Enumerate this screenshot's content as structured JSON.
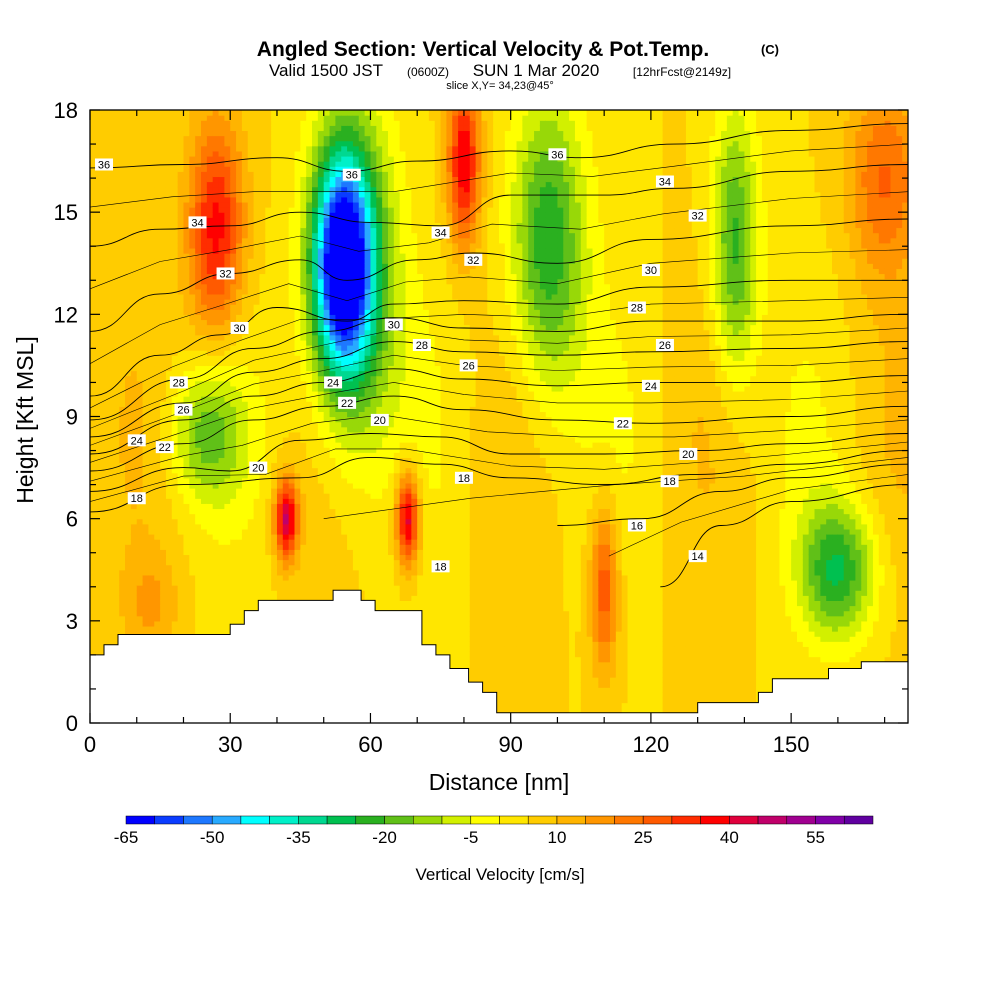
{
  "chart_data": {
    "type": "heatmap",
    "title": "Angled Section: Vertical Velocity & Pot.Temp.",
    "title_mark": "(C)",
    "subtitle_main": "Valid 1500 JST",
    "subtitle_z": "(0600Z)",
    "subtitle_date": "SUN 1 Mar 2020",
    "subtitle_fcst": "[12hrFcst@2149z]",
    "slice_label": "slice X,Y= 34,23@45°",
    "xlabel": "Distance [nm]",
    "ylabel": "Height [Kft MSL]",
    "xlim": [
      0,
      175
    ],
    "ylim": [
      0,
      18
    ],
    "x_ticks": [
      0,
      30,
      60,
      90,
      120,
      150
    ],
    "y_ticks": [
      0,
      3,
      6,
      9,
      12,
      15,
      18
    ],
    "colorbar": {
      "label": "Vertical Velocity [cm/s]",
      "range": [
        -65,
        65
      ],
      "step": 5,
      "tick_values": [
        -65,
        -50,
        -35,
        -20,
        -5,
        10,
        25,
        40,
        55
      ],
      "tick_labels": [
        "-65",
        "-50",
        "-35",
        "-20",
        "-5",
        "10",
        "25",
        "40",
        "55"
      ],
      "colors": [
        "#0000ff",
        "#0a3cff",
        "#1e78ff",
        "#28aaff",
        "#00ffff",
        "#00f0c8",
        "#00d890",
        "#00c050",
        "#2ab020",
        "#60c018",
        "#98d808",
        "#d2f000",
        "#ffff00",
        "#ffe600",
        "#ffcc00",
        "#ffb400",
        "#ff9600",
        "#ff7800",
        "#ff5a00",
        "#ff2d00",
        "#ff0000",
        "#e0003c",
        "#c0006a",
        "#a00090",
        "#8000a8",
        "#6000a0"
      ]
    },
    "velocity_cells": [
      {
        "x": [
          0,
          175
        ],
        "y": [
          0,
          18
        ],
        "w": 5
      },
      {
        "x": [
          27,
          6
        ],
        "y": [
          14.5,
          3.2
        ],
        "w": 38
      },
      {
        "x": [
          42,
          2.5
        ],
        "y": [
          6,
          1.2
        ],
        "w": 45
      },
      {
        "x": [
          68,
          2.5
        ],
        "y": [
          6,
          1.4
        ],
        "w": 45
      },
      {
        "x": [
          80,
          3.5
        ],
        "y": [
          16.5,
          2.5
        ],
        "w": 40
      },
      {
        "x": [
          54,
          6
        ],
        "y": [
          13.5,
          3
        ],
        "w": -55
      },
      {
        "x": [
          56,
          9
        ],
        "y": [
          13,
          5
        ],
        "w": -30
      },
      {
        "x": [
          98,
          8
        ],
        "y": [
          14,
          4.5
        ],
        "w": -25
      },
      {
        "x": [
          138,
          5
        ],
        "y": [
          14,
          4
        ],
        "w": -22
      },
      {
        "x": [
          160,
          8
        ],
        "y": [
          4.5,
          2
        ],
        "w": -25
      },
      {
        "x": [
          110,
          3
        ],
        "y": [
          4,
          2.5
        ],
        "w": 30
      },
      {
        "x": [
          170,
          8
        ],
        "y": [
          16,
          3
        ],
        "w": 25
      },
      {
        "x": [
          25,
          8
        ],
        "y": [
          8.5,
          2
        ],
        "w": -15
      },
      {
        "x": [
          13,
          6
        ],
        "y": [
          3.5,
          1.5
        ],
        "w": 15
      }
    ],
    "isentropes": [
      {
        "label": "14",
        "points": [
          [
            122,
            4
          ],
          [
            135,
            5.8
          ],
          [
            150,
            6.5
          ],
          [
            175,
            7
          ]
        ]
      },
      {
        "label": "16",
        "points": [
          [
            100,
            5.8
          ],
          [
            118,
            6
          ],
          [
            135,
            6.8
          ],
          [
            150,
            7.2
          ],
          [
            175,
            7.6
          ]
        ]
      },
      {
        "label": "18",
        "points": [
          [
            0,
            6.2
          ],
          [
            20,
            7
          ],
          [
            45,
            7.2
          ],
          [
            60,
            7.8
          ],
          [
            75,
            7.6
          ],
          [
            90,
            7.2
          ],
          [
            110,
            7
          ],
          [
            130,
            7.3
          ],
          [
            150,
            7.6
          ],
          [
            175,
            8
          ]
        ]
      },
      {
        "label": "20",
        "points": [
          [
            0,
            6.8
          ],
          [
            20,
            7.5
          ],
          [
            30,
            7.4
          ],
          [
            45,
            8.3
          ],
          [
            60,
            8.5
          ],
          [
            75,
            8.4
          ],
          [
            90,
            7.9
          ],
          [
            110,
            7.9
          ],
          [
            130,
            8
          ],
          [
            150,
            8.2
          ],
          [
            175,
            8.5
          ]
        ]
      },
      {
        "label": "22",
        "points": [
          [
            0,
            7.4
          ],
          [
            20,
            8.2
          ],
          [
            35,
            8.9
          ],
          [
            50,
            9.3
          ],
          [
            65,
            9.6
          ],
          [
            80,
            9.2
          ],
          [
            100,
            8.9
          ],
          [
            120,
            8.8
          ],
          [
            150,
            9
          ],
          [
            175,
            9.3
          ]
        ]
      },
      {
        "label": "24",
        "points": [
          [
            0,
            7.9
          ],
          [
            20,
            8.9
          ],
          [
            35,
            9.6
          ],
          [
            50,
            10
          ],
          [
            65,
            10.4
          ],
          [
            80,
            10.1
          ],
          [
            100,
            9.9
          ],
          [
            120,
            10
          ],
          [
            150,
            10
          ],
          [
            175,
            10.2
          ]
        ]
      },
      {
        "label": "26",
        "points": [
          [
            0,
            8.4
          ],
          [
            20,
            9.4
          ],
          [
            35,
            10.3
          ],
          [
            50,
            10.7
          ],
          [
            65,
            11.2
          ],
          [
            80,
            10.9
          ],
          [
            100,
            10.8
          ],
          [
            120,
            10.9
          ],
          [
            150,
            11
          ],
          [
            175,
            11.2
          ]
        ]
      },
      {
        "label": "28",
        "points": [
          [
            0,
            8.9
          ],
          [
            20,
            10.1
          ],
          [
            35,
            11
          ],
          [
            50,
            11.5
          ],
          [
            65,
            11.9
          ],
          [
            80,
            11.6
          ],
          [
            100,
            11.5
          ],
          [
            120,
            11.8
          ],
          [
            150,
            11.8
          ],
          [
            175,
            12
          ]
        ]
      },
      {
        "label": "30",
        "points": [
          [
            0,
            9.6
          ],
          [
            15,
            10.8
          ],
          [
            28,
            11.4
          ],
          [
            40,
            12.2
          ],
          [
            55,
            11.8
          ],
          [
            65,
            12.3
          ],
          [
            80,
            12.4
          ],
          [
            100,
            12.3
          ],
          [
            120,
            12.8
          ],
          [
            150,
            13
          ],
          [
            175,
            13
          ]
        ]
      },
      {
        "label": "32",
        "points": [
          [
            0,
            11.5
          ],
          [
            15,
            12.6
          ],
          [
            30,
            13.2
          ],
          [
            45,
            13.6
          ],
          [
            55,
            13
          ],
          [
            70,
            13.6
          ],
          [
            82,
            13.8
          ],
          [
            100,
            13.5
          ],
          [
            120,
            14.2
          ],
          [
            150,
            14.6
          ],
          [
            175,
            14.8
          ]
        ]
      },
      {
        "label": "34",
        "points": [
          [
            0,
            14
          ],
          [
            15,
            14.5
          ],
          [
            30,
            14.6
          ],
          [
            45,
            15
          ],
          [
            60,
            14.7
          ],
          [
            75,
            14.6
          ],
          [
            90,
            15.5
          ],
          [
            110,
            15.5
          ],
          [
            125,
            15.7
          ],
          [
            150,
            16.2
          ],
          [
            175,
            16.4
          ]
        ]
      },
      {
        "label": "36",
        "points": [
          [
            0,
            16.3
          ],
          [
            20,
            16.4
          ],
          [
            40,
            16.6
          ],
          [
            55,
            16.2
          ],
          [
            70,
            16.5
          ],
          [
            90,
            16.8
          ],
          [
            105,
            16.6
          ],
          [
            125,
            17
          ],
          [
            150,
            17.4
          ],
          [
            175,
            17.6
          ]
        ]
      }
    ],
    "isentrope_labels": [
      {
        "text": "14",
        "x": 130,
        "y": 4.9
      },
      {
        "text": "16",
        "x": 117,
        "y": 5.8
      },
      {
        "text": "18",
        "x": 10,
        "y": 6.6
      },
      {
        "text": "18",
        "x": 124,
        "y": 7.1
      },
      {
        "text": "18",
        "x": 80,
        "y": 7.2
      },
      {
        "text": "18",
        "x": 75,
        "y": 4.6
      },
      {
        "text": "20",
        "x": 36,
        "y": 7.5
      },
      {
        "text": "20",
        "x": 62,
        "y": 8.9
      },
      {
        "text": "20",
        "x": 128,
        "y": 7.9
      },
      {
        "text": "22",
        "x": 16,
        "y": 8.1
      },
      {
        "text": "22",
        "x": 55,
        "y": 9.4
      },
      {
        "text": "22",
        "x": 114,
        "y": 8.8
      },
      {
        "text": "24",
        "x": 10,
        "y": 8.3
      },
      {
        "text": "24",
        "x": 52,
        "y": 10
      },
      {
        "text": "24",
        "x": 120,
        "y": 9.9
      },
      {
        "text": "26",
        "x": 20,
        "y": 9.2
      },
      {
        "text": "26",
        "x": 81,
        "y": 10.5
      },
      {
        "text": "26",
        "x": 123,
        "y": 11.1
      },
      {
        "text": "28",
        "x": 19,
        "y": 10
      },
      {
        "text": "28",
        "x": 71,
        "y": 11.1
      },
      {
        "text": "28",
        "x": 117,
        "y": 12.2
      },
      {
        "text": "30",
        "x": 32,
        "y": 11.6
      },
      {
        "text": "30",
        "x": 65,
        "y": 11.7
      },
      {
        "text": "30",
        "x": 120,
        "y": 13.3
      },
      {
        "text": "32",
        "x": 29,
        "y": 13.2
      },
      {
        "text": "32",
        "x": 82,
        "y": 13.6
      },
      {
        "text": "32",
        "x": 130,
        "y": 14.9
      },
      {
        "text": "34",
        "x": 23,
        "y": 14.7
      },
      {
        "text": "34",
        "x": 75,
        "y": 14.4
      },
      {
        "text": "34",
        "x": 123,
        "y": 15.9
      },
      {
        "text": "36",
        "x": 3,
        "y": 16.4
      },
      {
        "text": "36",
        "x": 56,
        "y": 16.1
      },
      {
        "text": "36",
        "x": 100,
        "y": 16.7
      }
    ],
    "terrain": [
      [
        0,
        2
      ],
      [
        3,
        2
      ],
      [
        3,
        2.3
      ],
      [
        6,
        2.3
      ],
      [
        6,
        2.6
      ],
      [
        30,
        2.6
      ],
      [
        30,
        2.9
      ],
      [
        33,
        2.9
      ],
      [
        33,
        3.3
      ],
      [
        36,
        3.3
      ],
      [
        36,
        3.6
      ],
      [
        52,
        3.6
      ],
      [
        52,
        3.9
      ],
      [
        58,
        3.9
      ],
      [
        58,
        3.6
      ],
      [
        61,
        3.6
      ],
      [
        61,
        3.3
      ],
      [
        71,
        3.3
      ],
      [
        71,
        2.3
      ],
      [
        74,
        2.3
      ],
      [
        74,
        2
      ],
      [
        77,
        2
      ],
      [
        77,
        1.6
      ],
      [
        81,
        1.6
      ],
      [
        81,
        1.2
      ],
      [
        84,
        1.2
      ],
      [
        84,
        0.9
      ],
      [
        87,
        0.9
      ],
      [
        87,
        0.3
      ],
      [
        130,
        0.3
      ],
      [
        130,
        0.6
      ],
      [
        143,
        0.6
      ],
      [
        143,
        0.9
      ],
      [
        146,
        0.9
      ],
      [
        146,
        1.3
      ],
      [
        158,
        1.3
      ],
      [
        158,
        1.6
      ],
      [
        165,
        1.6
      ],
      [
        165,
        1.8
      ],
      [
        175,
        1.8
      ]
    ]
  }
}
